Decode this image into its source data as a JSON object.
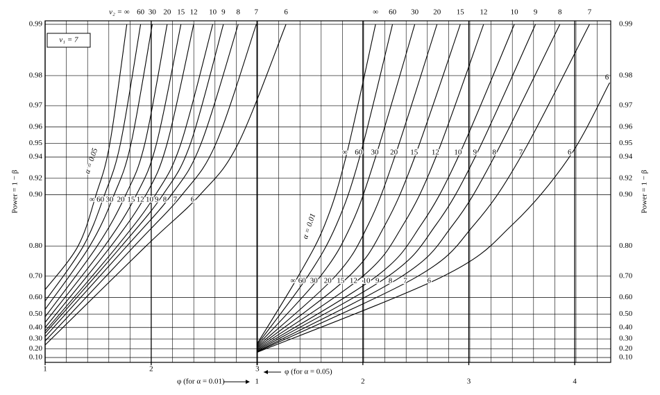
{
  "chart_data": {
    "type": "line",
    "nu1_label": "ν₁ = 7",
    "nu2_label": "ν₂ =",
    "ylabel": "Power = 1 − β",
    "xlabel": "φ (for α = 0.05)",
    "x2label": "φ (for α = 0.01)",
    "annotations": [
      "α = 0.05",
      "α = 0.01"
    ],
    "yscale": "log-complement",
    "color": "#000000",
    "grid": true,
    "ylim": [
      0.1,
      0.99
    ],
    "yticks": [
      {
        "value": 0.1,
        "label": "0.10"
      },
      {
        "value": 0.2,
        "label": "0.20"
      },
      {
        "value": 0.3,
        "label": "0.30"
      },
      {
        "value": 0.4,
        "label": "0.40"
      },
      {
        "value": 0.5,
        "label": "0.50"
      },
      {
        "value": 0.6,
        "label": "0.60"
      },
      {
        "value": 0.7,
        "label": "0.70"
      },
      {
        "value": 0.8,
        "label": "0.80"
      },
      {
        "value": 0.9,
        "label": "0.90"
      },
      {
        "value": 0.92,
        "label": "0.92"
      },
      {
        "value": 0.94,
        "label": "0.94"
      },
      {
        "value": 0.95,
        "label": "0.95"
      },
      {
        "value": 0.96,
        "label": "0.96"
      },
      {
        "value": 0.97,
        "label": "0.97"
      },
      {
        "value": 0.98,
        "label": "0.98"
      },
      {
        "value": 0.99,
        "label": "0.99"
      }
    ],
    "xlim": [
      1,
      6.33
    ],
    "xticks": [
      1,
      2,
      3
    ],
    "x2lim": [
      -1,
      4.34
    ],
    "x2ticks": [
      1,
      2,
      3,
      4
    ],
    "series": [
      {
        "name": "∞",
        "xaxis": "x",
        "x": [
          1,
          1.31,
          1.48,
          1.61,
          1.77
        ],
        "values": [
          0.64,
          0.8,
          0.9,
          0.95,
          0.99
        ]
      },
      {
        "name": "60",
        "xaxis": "x",
        "x": [
          1,
          1.36,
          1.56,
          1.71,
          1.9
        ],
        "values": [
          0.58,
          0.8,
          0.9,
          0.95,
          0.99
        ]
      },
      {
        "name": "30",
        "xaxis": "x",
        "x": [
          1,
          1.42,
          1.65,
          1.81,
          2.01
        ],
        "values": [
          0.53,
          0.8,
          0.9,
          0.95,
          0.99
        ]
      },
      {
        "name": "20",
        "xaxis": "x",
        "x": [
          1,
          1.49,
          1.76,
          1.94,
          2.15
        ],
        "values": [
          0.48,
          0.8,
          0.9,
          0.95,
          0.99
        ]
      },
      {
        "name": "15",
        "xaxis": "x",
        "x": [
          1,
          1.56,
          1.86,
          2.05,
          2.28
        ],
        "values": [
          0.44,
          0.8,
          0.9,
          0.95,
          0.99
        ]
      },
      {
        "name": "12",
        "xaxis": "x",
        "x": [
          1,
          1.62,
          1.95,
          2.15,
          2.4
        ],
        "values": [
          0.4,
          0.8,
          0.9,
          0.95,
          0.99
        ]
      },
      {
        "name": "10",
        "xaxis": "x",
        "x": [
          1,
          1.68,
          2.04,
          2.28,
          2.58
        ],
        "values": [
          0.37,
          0.8,
          0.9,
          0.95,
          0.99
        ]
      },
      {
        "name": "9",
        "xaxis": "x",
        "x": [
          1,
          1.72,
          2.11,
          2.37,
          2.68
        ],
        "values": [
          0.35,
          0.8,
          0.9,
          0.95,
          0.99
        ]
      },
      {
        "name": "8",
        "xaxis": "x",
        "x": [
          1,
          1.77,
          2.19,
          2.47,
          2.82
        ],
        "values": [
          0.32,
          0.8,
          0.9,
          0.95,
          0.99
        ]
      },
      {
        "name": "7",
        "xaxis": "x",
        "x": [
          1,
          1.84,
          2.29,
          2.61,
          2.99
        ],
        "values": [
          0.28,
          0.8,
          0.9,
          0.95,
          0.99
        ]
      },
      {
        "name": "6",
        "xaxis": "x",
        "x": [
          1,
          1.95,
          2.46,
          2.82,
          3.27
        ],
        "values": [
          0.24,
          0.8,
          0.9,
          0.95,
          0.99
        ]
      },
      {
        "name": "∞",
        "xaxis": "x2",
        "x": [
          1,
          1.39,
          1.64,
          1.84,
          2.12
        ],
        "values": [
          0.25,
          0.7,
          0.85,
          0.94,
          0.99
        ]
      },
      {
        "name": "60",
        "xaxis": "x2",
        "x": [
          1,
          1.48,
          1.75,
          1.97,
          2.28
        ],
        "values": [
          0.24,
          0.7,
          0.85,
          0.94,
          0.99
        ]
      },
      {
        "name": "30",
        "xaxis": "x2",
        "x": [
          1,
          1.6,
          1.89,
          2.12,
          2.49
        ],
        "values": [
          0.23,
          0.7,
          0.85,
          0.94,
          0.99
        ]
      },
      {
        "name": "20",
        "xaxis": "x2",
        "x": [
          1,
          1.74,
          2.05,
          2.3,
          2.7
        ],
        "values": [
          0.22,
          0.7,
          0.85,
          0.94,
          0.99
        ]
      },
      {
        "name": "15",
        "xaxis": "x2",
        "x": [
          1,
          1.87,
          2.21,
          2.49,
          2.92
        ],
        "values": [
          0.21,
          0.7,
          0.85,
          0.94,
          0.99
        ]
      },
      {
        "name": "12",
        "xaxis": "x2",
        "x": [
          1,
          2,
          2.38,
          2.69,
          3.14
        ],
        "values": [
          0.2,
          0.7,
          0.85,
          0.94,
          0.99
        ]
      },
      {
        "name": "10",
        "xaxis": "x2",
        "x": [
          1,
          2.13,
          2.55,
          2.9,
          3.43
        ],
        "values": [
          0.19,
          0.7,
          0.85,
          0.94,
          0.99
        ]
      },
      {
        "name": "9",
        "xaxis": "x2",
        "x": [
          1,
          2.24,
          2.69,
          3.06,
          3.63
        ],
        "values": [
          0.18,
          0.7,
          0.85,
          0.94,
          0.99
        ]
      },
      {
        "name": "8",
        "xaxis": "x2",
        "x": [
          1,
          2.37,
          2.85,
          3.24,
          3.86
        ],
        "values": [
          0.17,
          0.7,
          0.85,
          0.94,
          0.99
        ]
      },
      {
        "name": "7",
        "xaxis": "x2",
        "x": [
          1,
          2.52,
          3.05,
          3.49,
          4.14
        ],
        "values": [
          0.165,
          0.7,
          0.85,
          0.94,
          0.99
        ]
      },
      {
        "name": "6",
        "xaxis": "x2",
        "x": [
          1,
          2.76,
          3.41,
          3.95,
          4.33
        ],
        "values": [
          0.16,
          0.7,
          0.85,
          0.94,
          0.978
        ]
      }
    ]
  }
}
